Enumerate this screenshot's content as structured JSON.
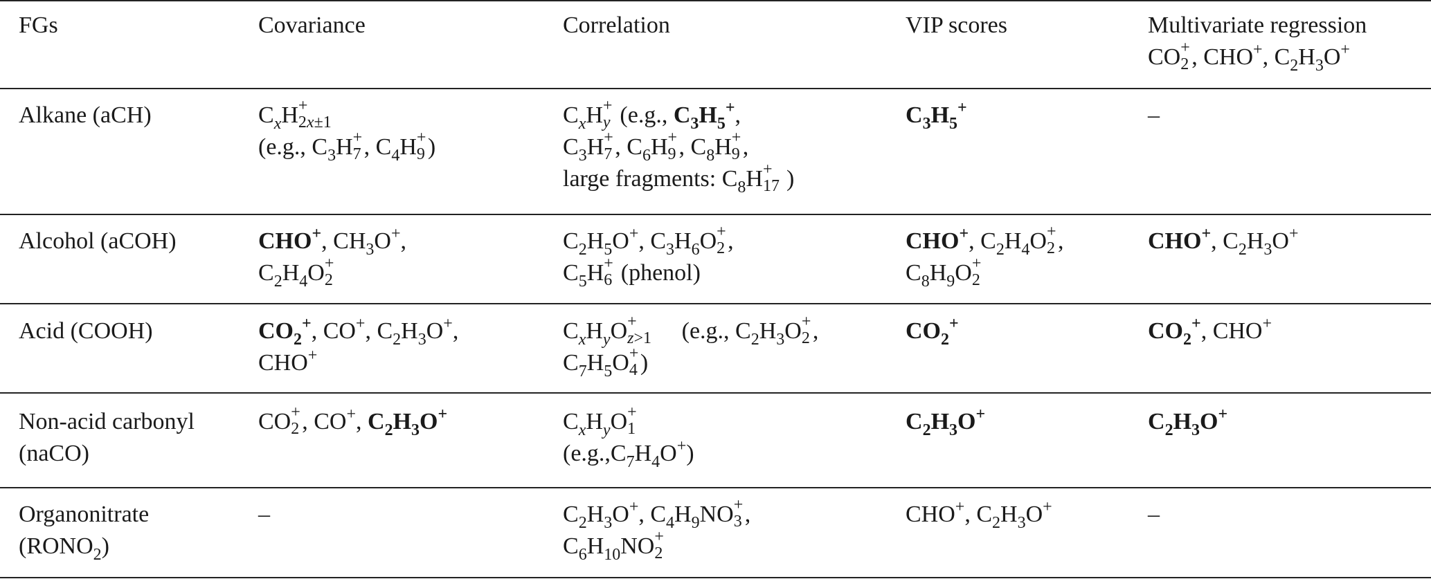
{
  "table": {
    "headers": {
      "fgs": "FGs",
      "covariance": "Covariance",
      "correlation": "Correlation",
      "vip": "VIP scores",
      "mvr_title": "Multivariate regression",
      "mvr_ions": "CO2+, CHO+, C2H3O+"
    },
    "rows": [
      {
        "fg": [
          "Alkane (aCH)"
        ],
        "covariance": [
          "CxH2x±1+",
          "(e.g., C3H7+, C4H9+)"
        ],
        "correlation": [
          "CxHy+ (e.g., C3H5+,",
          "C3H7+, C6H9+, C8H9+,",
          "large fragments: C8H17+)"
        ],
        "vip": [
          "C3H5+"
        ],
        "mvr": [
          "–"
        ]
      },
      {
        "fg": [
          "Alcohol (aCOH)"
        ],
        "covariance": [
          "CHO+, CH3O+,",
          "C2H4O2+"
        ],
        "correlation": [
          "C2H5O+, C3H6O2+,",
          "C5H6+ (phenol)"
        ],
        "vip": [
          "CHO+, C2H4O2+,",
          "C8H9O2+"
        ],
        "mvr": [
          "CHO+, C2H3O+"
        ]
      },
      {
        "fg": [
          "Acid (COOH)"
        ],
        "covariance": [
          "CO2+, CO+, C2H3O+,",
          "CHO+"
        ],
        "correlation": [
          "CxHyOz>1+ (e.g., C2H3O2+,",
          "C7H5O4+)"
        ],
        "vip": [
          "CO2+"
        ],
        "mvr": [
          "CO2+, CHO+"
        ]
      },
      {
        "fg": [
          "Non-acid carbonyl",
          "(naCO)"
        ],
        "covariance": [
          "CO2+, CO+, C2H3O+"
        ],
        "correlation": [
          "CxHyO1+",
          "(e.g.,C7H4O+)"
        ],
        "vip": [
          "C2H3O+"
        ],
        "mvr": [
          "C2H3O+"
        ]
      },
      {
        "fg": [
          "Organonitrate",
          "(RONO2)"
        ],
        "covariance": [
          "–"
        ],
        "correlation": [
          "C2H3O+, C4H9NO3+,",
          "C6H10NO2+"
        ],
        "vip": [
          "CHO+, C2H3O+"
        ],
        "mvr": [
          "–"
        ]
      }
    ]
  }
}
